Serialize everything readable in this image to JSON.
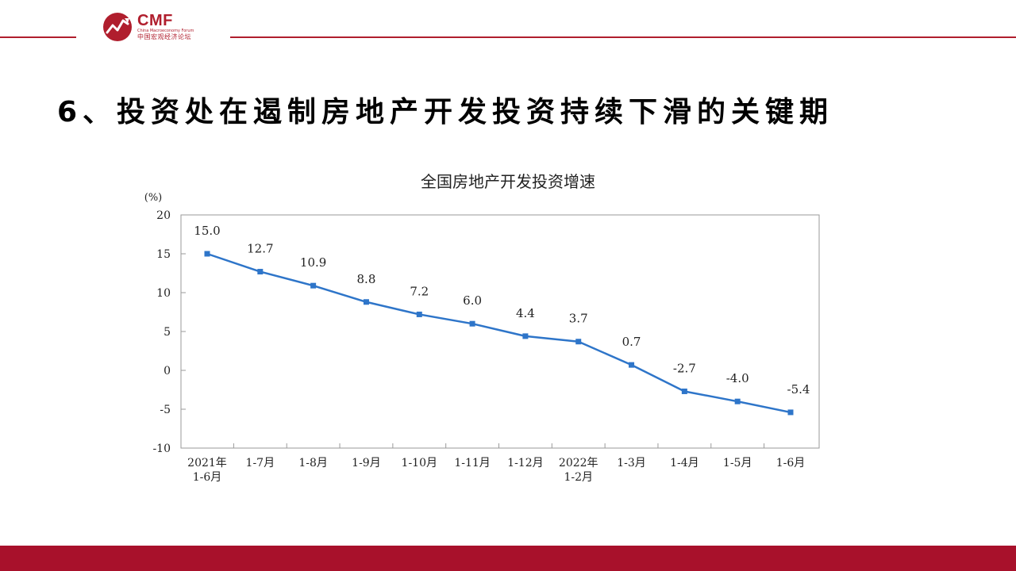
{
  "header": {
    "logo": {
      "name": "CMF",
      "subtitle": "China Macroeconomy Forum",
      "cn_name": "中国宏观经济论坛"
    },
    "accent_color": "#b01e2d"
  },
  "slide": {
    "title": "6、投资处在遏制房地产开发投资持续下滑的关键期"
  },
  "chart_data": {
    "type": "line",
    "title": "全国房地产开发投资增速",
    "unit_label": "(%)",
    "categories": [
      [
        "2021年",
        "1-6月"
      ],
      [
        "1-7月"
      ],
      [
        "1-8月"
      ],
      [
        "1-9月"
      ],
      [
        "1-10月"
      ],
      [
        "1-11月"
      ],
      [
        "1-12月"
      ],
      [
        "2022年",
        "1-2月"
      ],
      [
        "1-3月"
      ],
      [
        "1-4月"
      ],
      [
        "1-5月"
      ],
      [
        "1-6月"
      ]
    ],
    "series": [
      {
        "values": [
          15.0,
          12.7,
          10.9,
          8.8,
          7.2,
          6.0,
          4.4,
          3.7,
          0.7,
          -2.7,
          -4.0,
          -5.4
        ],
        "labels": [
          "15.0",
          "12.7",
          "10.9",
          "8.8",
          "7.2",
          "6.0",
          "4.4",
          "3.7",
          "0.7",
          "-2.7",
          "-4.0",
          "-5.4"
        ],
        "color": "#2e75c9"
      }
    ],
    "ylim": [
      -10,
      20
    ],
    "yticks": [
      20,
      15,
      10,
      5,
      0,
      -5,
      -10
    ],
    "grid": false,
    "legend": "none"
  },
  "footer": {
    "color": "#a8112b"
  }
}
